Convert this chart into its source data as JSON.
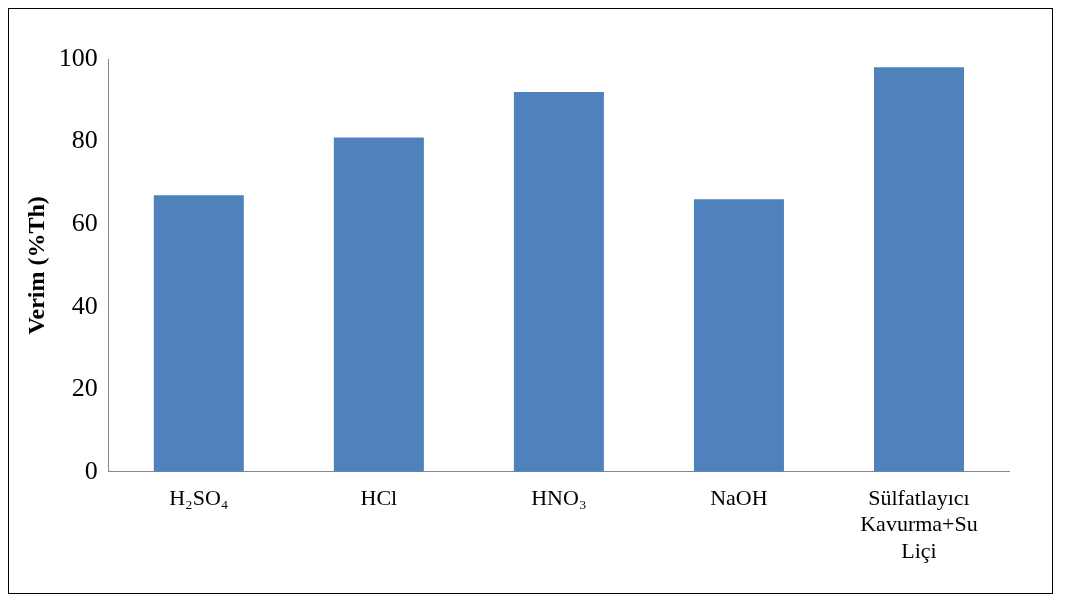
{
  "chart_data": {
    "type": "bar",
    "ylabel": "Verim (%Th)",
    "categories": [
      "H₂SO₄",
      "HCl",
      "HNO₃",
      "NaOH",
      "Sülfatlayıcı Kavurma+Su Liçi"
    ],
    "values": [
      67,
      81,
      92,
      66,
      98
    ],
    "color": "#4f81bd",
    "ylim": [
      0,
      100
    ],
    "yticks": [
      0,
      20,
      40,
      60,
      80,
      100
    ],
    "grid": false,
    "legend": false
  }
}
